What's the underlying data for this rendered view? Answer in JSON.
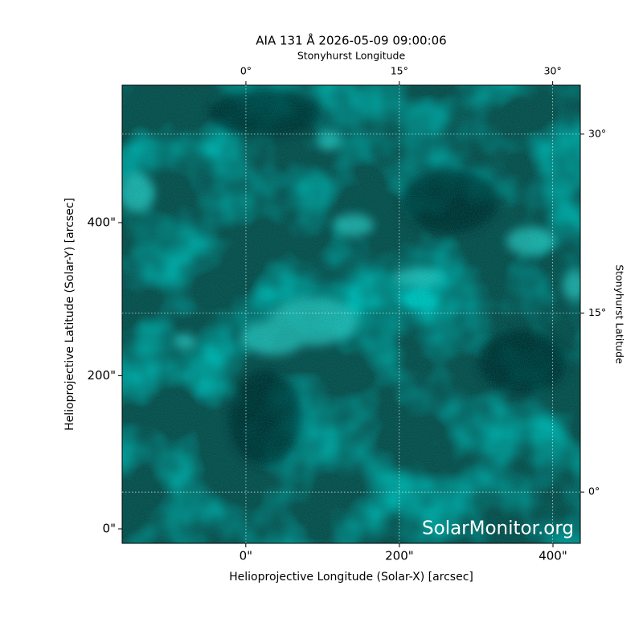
{
  "chart_data": {
    "type": "image",
    "title": "AIA 131 Å 2026-05-09 09:00:06",
    "xlabel": "Helioprojective Longitude (Solar-X) [arcsec]",
    "ylabel": "Helioprojective Latitude (Solar-Y) [arcsec]",
    "x2label": "Stonyhurst Longitude",
    "y2label": "Stonyhurst Latitude",
    "watermark": "SolarMonitor.org",
    "xlim": [
      -161,
      435.6
    ],
    "ylim": [
      -18.9,
      579.5
    ],
    "xticks": [
      {
        "value": 0,
        "label": "0\""
      },
      {
        "value": 200,
        "label": "200\""
      },
      {
        "value": 400,
        "label": "400\""
      }
    ],
    "yticks": [
      {
        "value": 0,
        "label": "0\""
      },
      {
        "value": 200,
        "label": "200\""
      },
      {
        "value": 400,
        "label": "400\""
      }
    ],
    "x2lim": [
      -12.1,
      32.7
    ],
    "x2ticks": [
      {
        "value": 0,
        "label": "0°"
      },
      {
        "value": 15,
        "label": "15°"
      },
      {
        "value": 30,
        "label": "30°"
      }
    ],
    "y2lim": [
      -4.3,
      34.1
    ],
    "y2ticks": [
      {
        "value": 0,
        "label": "0°"
      },
      {
        "value": 15,
        "label": "15°"
      },
      {
        "value": 30,
        "label": "30°"
      }
    ],
    "grid": true
  }
}
